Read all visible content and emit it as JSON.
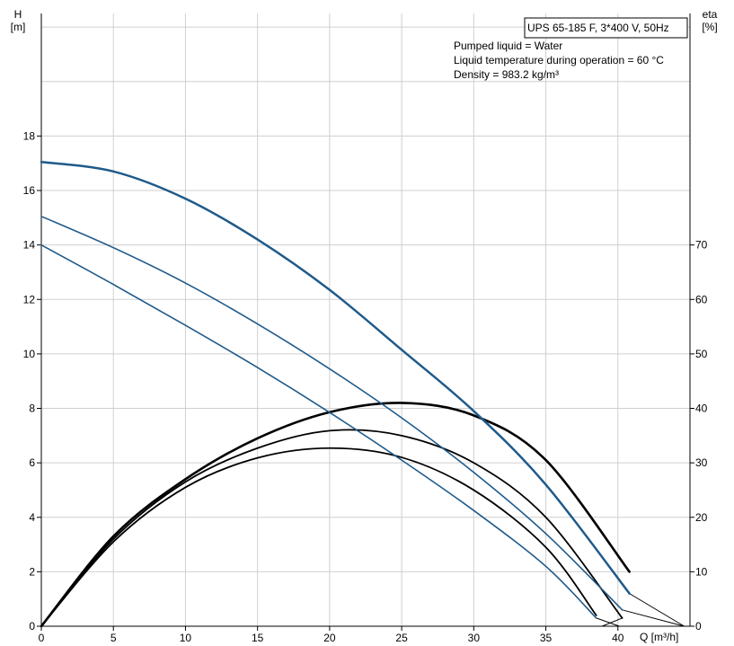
{
  "chart_data": {
    "type": "line",
    "title": "UPS 65-185 F, 3*400 V, 50Hz",
    "info_lines": [
      "Pumped liquid = Water",
      "Liquid temperature during operation = 60 °C",
      "Density = 983.2 kg/m³"
    ],
    "xlabel": "Q [m³/h]",
    "ylabel_left": {
      "name": "H",
      "unit": "[m]"
    },
    "ylabel_right": {
      "name": "eta",
      "unit": "[%]"
    },
    "xlim": [
      0,
      45
    ],
    "ylim_left": [
      0,
      22.5
    ],
    "ylim_right": [
      0,
      112.5
    ],
    "x_ticks": [
      0,
      5,
      10,
      15,
      20,
      25,
      30,
      35,
      40
    ],
    "y_ticks_left": [
      0,
      2,
      4,
      6,
      8,
      10,
      12,
      14,
      16,
      18
    ],
    "y_ticks_right": [
      0,
      10,
      20,
      30,
      40,
      50,
      60,
      70
    ],
    "grid": true,
    "head_series": [
      {
        "axis": "left",
        "color": "#1f5a8a",
        "width": 2.5,
        "x": [
          0,
          5,
          10,
          15,
          20,
          25,
          30,
          35,
          40.8
        ],
        "y": [
          17.05,
          16.7,
          15.7,
          14.2,
          12.35,
          10.15,
          7.9,
          5.2,
          1.2
        ]
      },
      {
        "axis": "left",
        "color": "#1f5a8a",
        "width": 1.6,
        "x": [
          0,
          5,
          10,
          15,
          20,
          25,
          30,
          35,
          40.3
        ],
        "y": [
          15.05,
          13.9,
          12.6,
          11.1,
          9.45,
          7.65,
          5.65,
          3.4,
          0.6
        ]
      },
      {
        "axis": "left",
        "color": "#1f5a8a",
        "width": 1.6,
        "x": [
          0,
          5,
          10,
          15,
          20,
          25,
          30,
          35,
          38.5
        ],
        "y": [
          14.0,
          12.55,
          11.05,
          9.5,
          7.85,
          6.1,
          4.25,
          2.2,
          0.3
        ]
      }
    ],
    "efficiency_series": [
      {
        "axis": "right",
        "color": "#000000",
        "width": 2.6,
        "x": [
          0,
          5,
          10,
          15,
          20,
          25,
          30,
          35,
          40.8
        ],
        "y": [
          0,
          16.5,
          27.0,
          34.5,
          39.3,
          41.0,
          38.7,
          30.5,
          10.0
        ]
      },
      {
        "axis": "right",
        "color": "#000000",
        "width": 1.8,
        "x": [
          0,
          5,
          10,
          15,
          20,
          25,
          30,
          35,
          40.3
        ],
        "y": [
          0,
          16.0,
          26.5,
          32.7,
          35.9,
          35.0,
          30.0,
          20.0,
          1.5
        ]
      },
      {
        "axis": "right",
        "color": "#000000",
        "width": 1.8,
        "x": [
          0,
          5,
          10,
          15,
          20,
          25,
          30,
          35,
          38.5
        ],
        "y": [
          0,
          15.5,
          25.5,
          30.9,
          32.7,
          31.0,
          25.0,
          14.5,
          2.0
        ]
      }
    ],
    "curve_tails": [
      {
        "color": "#000000",
        "from": [
          40.8,
          1.2
        ],
        "to": [
          44.6,
          0
        ]
      },
      {
        "color": "#000000",
        "from": [
          40.3,
          0.6
        ],
        "to": [
          44.6,
          0
        ]
      },
      {
        "color": "#000000",
        "from": [
          38.5,
          0.3
        ],
        "to": [
          40.1,
          0
        ]
      },
      {
        "color": "#000000",
        "from": [
          40.3,
          0.3
        ],
        "to": [
          38.9,
          0
        ]
      }
    ]
  }
}
